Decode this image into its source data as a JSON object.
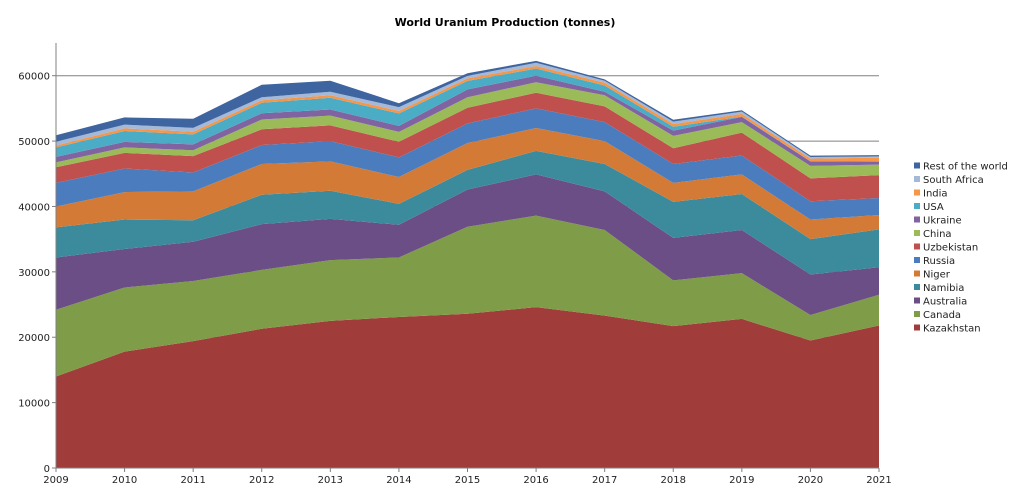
{
  "chart_data": {
    "type": "area",
    "stacked": true,
    "title": "World Uranium Production (tonnes)",
    "xlabel": "",
    "ylabel": "",
    "x": [
      "2009",
      "2010",
      "2011",
      "2012",
      "2013",
      "2014",
      "2015",
      "2016",
      "2017",
      "2018",
      "2019",
      "2020",
      "2021"
    ],
    "yticks": [
      "0",
      "10000",
      "20000",
      "30000",
      "40000",
      "50000",
      "60000"
    ],
    "ylim": [
      0,
      65000
    ],
    "grid": "horizontal",
    "legend_position": "right",
    "series": [
      {
        "name": "Kazakhstan",
        "color": "#a03c3a",
        "values": [
          14000,
          17800,
          19400,
          21300,
          22500,
          23100,
          23600,
          24600,
          23300,
          21700,
          22800,
          19500,
          21800
        ]
      },
      {
        "name": "Canada",
        "color": "#7f9d48",
        "values": [
          10200,
          9800,
          9200,
          9000,
          9300,
          9100,
          13300,
          14000,
          13100,
          7000,
          7000,
          3900,
          4700
        ]
      },
      {
        "name": "Australia",
        "color": "#6c4e86",
        "values": [
          8000,
          5900,
          6000,
          7000,
          6300,
          5000,
          5700,
          6300,
          5900,
          6500,
          6600,
          6200,
          4200
        ]
      },
      {
        "name": "Namibia",
        "color": "#3b8b9d",
        "values": [
          4600,
          4500,
          3300,
          4500,
          4300,
          3200,
          3000,
          3600,
          4200,
          5500,
          5500,
          5400,
          5800
        ]
      },
      {
        "name": "Niger",
        "color": "#d37b36",
        "values": [
          3200,
          4200,
          4400,
          4700,
          4500,
          4100,
          4100,
          3500,
          3500,
          2900,
          3000,
          3000,
          2200
        ]
      },
      {
        "name": "Russia",
        "color": "#4a7cbe",
        "values": [
          3600,
          3600,
          2900,
          2900,
          3100,
          3000,
          3000,
          3000,
          2900,
          2900,
          2900,
          2800,
          2600
        ]
      },
      {
        "name": "Uzbekistan",
        "color": "#c0504d",
        "values": [
          2400,
          2400,
          2500,
          2400,
          2400,
          2400,
          2400,
          2400,
          2400,
          2400,
          3500,
          3500,
          3500
        ]
      },
      {
        "name": "China",
        "color": "#9bbb59",
        "values": [
          750,
          830,
          900,
          1500,
          1500,
          1500,
          1600,
          1600,
          1700,
          1900,
          1600,
          1900,
          1600
        ]
      },
      {
        "name": "Ukraine",
        "color": "#8064a2",
        "values": [
          840,
          850,
          890,
          960,
          920,
          930,
          1200,
          1000,
          550,
          800,
          800,
          700,
          450
        ]
      },
      {
        "name": "USA",
        "color": "#4bacc6",
        "values": [
          1450,
          1660,
          1540,
          1600,
          1800,
          1900,
          1300,
          1100,
          950,
          600,
          60,
          20,
          10
        ]
      },
      {
        "name": "India",
        "color": "#f79646",
        "values": [
          290,
          400,
          400,
          385,
          385,
          385,
          385,
          385,
          420,
          420,
          400,
          400,
          600
        ]
      },
      {
        "name": "South Africa",
        "color": "#a4b8d8",
        "values": [
          563,
          583,
          582,
          465,
          531,
          573,
          393,
          490,
          308,
          346,
          346,
          250,
          192
        ]
      },
      {
        "name": "Rest of the world",
        "color": "#3e65a0",
        "values": [
          1000,
          1100,
          1400,
          1900,
          1700,
          600,
          400,
          300,
          200,
          300,
          200,
          200,
          200
        ]
      }
    ]
  }
}
